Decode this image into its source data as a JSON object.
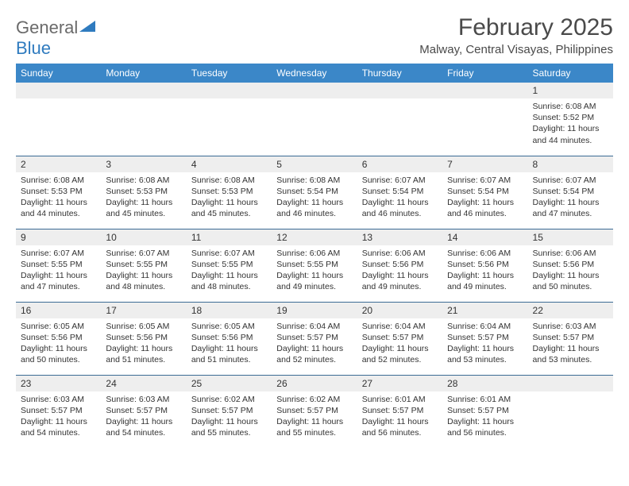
{
  "logo": {
    "word1": "General",
    "word2": "Blue",
    "icon_color": "#2f7bbf"
  },
  "title": "February 2025",
  "location": "Malway, Central Visayas, Philippines",
  "header_bg": "#3b87c8",
  "header_fg": "#ffffff",
  "daynum_bg": "#eeeeee",
  "rule_color": "#3b6b94",
  "text_color": "#333333",
  "day_headers": [
    "Sunday",
    "Monday",
    "Tuesday",
    "Wednesday",
    "Thursday",
    "Friday",
    "Saturday"
  ],
  "weeks": [
    [
      {
        "n": "",
        "lines": []
      },
      {
        "n": "",
        "lines": []
      },
      {
        "n": "",
        "lines": []
      },
      {
        "n": "",
        "lines": []
      },
      {
        "n": "",
        "lines": []
      },
      {
        "n": "",
        "lines": []
      },
      {
        "n": "1",
        "lines": [
          "Sunrise: 6:08 AM",
          "Sunset: 5:52 PM",
          "Daylight: 11 hours and 44 minutes."
        ]
      }
    ],
    [
      {
        "n": "2",
        "lines": [
          "Sunrise: 6:08 AM",
          "Sunset: 5:53 PM",
          "Daylight: 11 hours and 44 minutes."
        ]
      },
      {
        "n": "3",
        "lines": [
          "Sunrise: 6:08 AM",
          "Sunset: 5:53 PM",
          "Daylight: 11 hours and 45 minutes."
        ]
      },
      {
        "n": "4",
        "lines": [
          "Sunrise: 6:08 AM",
          "Sunset: 5:53 PM",
          "Daylight: 11 hours and 45 minutes."
        ]
      },
      {
        "n": "5",
        "lines": [
          "Sunrise: 6:08 AM",
          "Sunset: 5:54 PM",
          "Daylight: 11 hours and 46 minutes."
        ]
      },
      {
        "n": "6",
        "lines": [
          "Sunrise: 6:07 AM",
          "Sunset: 5:54 PM",
          "Daylight: 11 hours and 46 minutes."
        ]
      },
      {
        "n": "7",
        "lines": [
          "Sunrise: 6:07 AM",
          "Sunset: 5:54 PM",
          "Daylight: 11 hours and 46 minutes."
        ]
      },
      {
        "n": "8",
        "lines": [
          "Sunrise: 6:07 AM",
          "Sunset: 5:54 PM",
          "Daylight: 11 hours and 47 minutes."
        ]
      }
    ],
    [
      {
        "n": "9",
        "lines": [
          "Sunrise: 6:07 AM",
          "Sunset: 5:55 PM",
          "Daylight: 11 hours and 47 minutes."
        ]
      },
      {
        "n": "10",
        "lines": [
          "Sunrise: 6:07 AM",
          "Sunset: 5:55 PM",
          "Daylight: 11 hours and 48 minutes."
        ]
      },
      {
        "n": "11",
        "lines": [
          "Sunrise: 6:07 AM",
          "Sunset: 5:55 PM",
          "Daylight: 11 hours and 48 minutes."
        ]
      },
      {
        "n": "12",
        "lines": [
          "Sunrise: 6:06 AM",
          "Sunset: 5:55 PM",
          "Daylight: 11 hours and 49 minutes."
        ]
      },
      {
        "n": "13",
        "lines": [
          "Sunrise: 6:06 AM",
          "Sunset: 5:56 PM",
          "Daylight: 11 hours and 49 minutes."
        ]
      },
      {
        "n": "14",
        "lines": [
          "Sunrise: 6:06 AM",
          "Sunset: 5:56 PM",
          "Daylight: 11 hours and 49 minutes."
        ]
      },
      {
        "n": "15",
        "lines": [
          "Sunrise: 6:06 AM",
          "Sunset: 5:56 PM",
          "Daylight: 11 hours and 50 minutes."
        ]
      }
    ],
    [
      {
        "n": "16",
        "lines": [
          "Sunrise: 6:05 AM",
          "Sunset: 5:56 PM",
          "Daylight: 11 hours and 50 minutes."
        ]
      },
      {
        "n": "17",
        "lines": [
          "Sunrise: 6:05 AM",
          "Sunset: 5:56 PM",
          "Daylight: 11 hours and 51 minutes."
        ]
      },
      {
        "n": "18",
        "lines": [
          "Sunrise: 6:05 AM",
          "Sunset: 5:56 PM",
          "Daylight: 11 hours and 51 minutes."
        ]
      },
      {
        "n": "19",
        "lines": [
          "Sunrise: 6:04 AM",
          "Sunset: 5:57 PM",
          "Daylight: 11 hours and 52 minutes."
        ]
      },
      {
        "n": "20",
        "lines": [
          "Sunrise: 6:04 AM",
          "Sunset: 5:57 PM",
          "Daylight: 11 hours and 52 minutes."
        ]
      },
      {
        "n": "21",
        "lines": [
          "Sunrise: 6:04 AM",
          "Sunset: 5:57 PM",
          "Daylight: 11 hours and 53 minutes."
        ]
      },
      {
        "n": "22",
        "lines": [
          "Sunrise: 6:03 AM",
          "Sunset: 5:57 PM",
          "Daylight: 11 hours and 53 minutes."
        ]
      }
    ],
    [
      {
        "n": "23",
        "lines": [
          "Sunrise: 6:03 AM",
          "Sunset: 5:57 PM",
          "Daylight: 11 hours and 54 minutes."
        ]
      },
      {
        "n": "24",
        "lines": [
          "Sunrise: 6:03 AM",
          "Sunset: 5:57 PM",
          "Daylight: 11 hours and 54 minutes."
        ]
      },
      {
        "n": "25",
        "lines": [
          "Sunrise: 6:02 AM",
          "Sunset: 5:57 PM",
          "Daylight: 11 hours and 55 minutes."
        ]
      },
      {
        "n": "26",
        "lines": [
          "Sunrise: 6:02 AM",
          "Sunset: 5:57 PM",
          "Daylight: 11 hours and 55 minutes."
        ]
      },
      {
        "n": "27",
        "lines": [
          "Sunrise: 6:01 AM",
          "Sunset: 5:57 PM",
          "Daylight: 11 hours and 56 minutes."
        ]
      },
      {
        "n": "28",
        "lines": [
          "Sunrise: 6:01 AM",
          "Sunset: 5:57 PM",
          "Daylight: 11 hours and 56 minutes."
        ]
      },
      {
        "n": "",
        "lines": []
      }
    ]
  ]
}
